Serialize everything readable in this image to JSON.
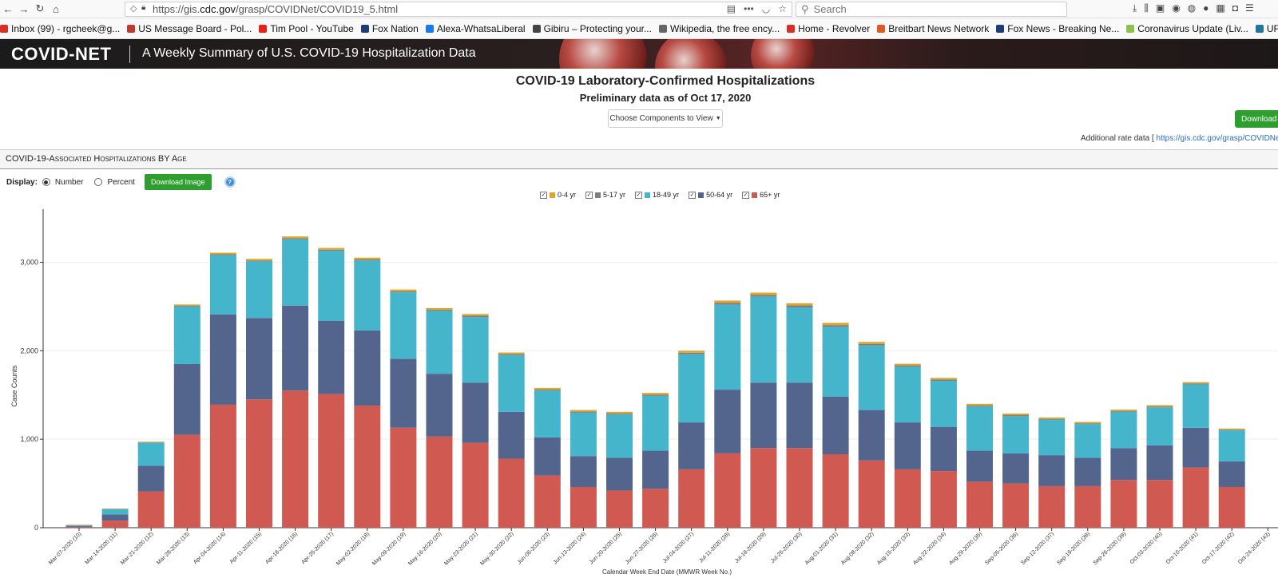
{
  "browser": {
    "url_prefix": "https://gis.",
    "url_domain": "cdc.gov",
    "url_path": "/grasp/COVIDNet/COVID19_5.html",
    "search_placeholder": "Search",
    "bookmarks": [
      {
        "label": "Inbox (99) - rgcheek@g...",
        "color": "#d93025"
      },
      {
        "label": "US Message Board - Pol...",
        "color": "#c0392b"
      },
      {
        "label": "Tim Pool - YouTube",
        "color": "#e62117"
      },
      {
        "label": "Fox Nation",
        "color": "#1d3c78"
      },
      {
        "label": "Alexa-WhatsaLiberal",
        "color": "#1877f2"
      },
      {
        "label": "Gibiru – Protecting your...",
        "color": "#444444"
      },
      {
        "label": "Wikipedia, the free ency...",
        "color": "#666666"
      },
      {
        "label": "Home - Revolver",
        "color": "#d93025"
      },
      {
        "label": "Breitbart News Network",
        "color": "#e25822"
      },
      {
        "label": "Fox News - Breaking Ne...",
        "color": "#1d3c78"
      },
      {
        "label": "Coronavirus Update (Liv...",
        "color": "#8bc34a"
      },
      {
        "label": "UFO Archives - Very To...",
        "color": "#21759b"
      }
    ]
  },
  "site": {
    "logo": "COVID-NET",
    "tagline": "A Weekly Summary of U.S. COVID-19 Hospitalization Data"
  },
  "page": {
    "title": "COVID-19 Laboratory-Confirmed Hospitalizations",
    "subtitle": "Preliminary data as of Oct 17, 2020",
    "components_button": "Choose Components to View",
    "download_data_button": "Download D",
    "rate_data_label": "Additional rate data [",
    "rate_data_link": "https://gis.cdc.gov/grasp/COVIDNet/CO"
  },
  "panel": {
    "title": "COVID-19-Associated Hospitalizations BY Age",
    "display_label": "Display:",
    "options": [
      "Number",
      "Percent"
    ],
    "selected_option": "Number",
    "download_image": "Download Image",
    "help": "?"
  },
  "chart_data": {
    "type": "bar",
    "stacked": true,
    "title": "",
    "xlabel": "Calendar Week End Date (MMWR Week No.)",
    "ylabel": "Case Counts",
    "ylim": [
      0,
      3600
    ],
    "yticks": [
      "0",
      "1,000",
      "2,000",
      "3,000"
    ],
    "ytick_values": [
      0,
      1000,
      2000,
      3000
    ],
    "grid": true,
    "legend_position": "top-center",
    "categories": [
      "Mar-07-2020 (10)",
      "Mar-14-2020 (11)",
      "Mar-21-2020 (12)",
      "Mar-28-2020 (13)",
      "Apr-04-2020 (14)",
      "Apr-11-2020 (15)",
      "Apr-18-2020 (16)",
      "Apr-25-2020 (17)",
      "May-02-2020 (18)",
      "May-09-2020 (19)",
      "May-16-2020 (20)",
      "May-23-2020 (21)",
      "May-30-2020 (22)",
      "Jun-06-2020 (23)",
      "Jun-13-2020 (24)",
      "Jun-20-2020 (25)",
      "Jun-27-2020 (26)",
      "Jul-04-2020 (27)",
      "Jul-11-2020 (28)",
      "Jul-18-2020 (29)",
      "Jul-25-2020 (30)",
      "Aug-01-2020 (31)",
      "Aug-08-2020 (32)",
      "Aug-15-2020 (33)",
      "Aug-22-2020 (34)",
      "Aug-29-2020 (35)",
      "Sep-05-2020 (36)",
      "Sep-12-2020 (37)",
      "Sep-19-2020 (38)",
      "Sep-26-2020 (39)",
      "Oct-03-2020 (40)",
      "Oct-10-2020 (41)",
      "Oct-17-2020 (42)",
      "Oct-24-2020 (43)"
    ],
    "series": [
      {
        "name": "0-4 yr",
        "color": "#e0a526",
        "values": [
          2,
          3,
          8,
          15,
          18,
          18,
          20,
          20,
          20,
          20,
          20,
          20,
          18,
          18,
          18,
          18,
          18,
          22,
          25,
          25,
          25,
          25,
          22,
          18,
          18,
          18,
          18,
          15,
          15,
          15,
          15,
          15,
          12,
          0
        ]
      },
      {
        "name": "5-17 yr",
        "color": "#7b7e84",
        "values": [
          1,
          2,
          4,
          8,
          10,
          10,
          12,
          12,
          12,
          12,
          12,
          15,
          12,
          12,
          12,
          12,
          15,
          18,
          22,
          22,
          22,
          20,
          18,
          15,
          15,
          12,
          12,
          10,
          10,
          10,
          10,
          10,
          8,
          0
        ]
      },
      {
        "name": "18-49 yr",
        "color": "#45b5cc",
        "values": [
          10,
          60,
          260,
          650,
          670,
          640,
          750,
          790,
          790,
          750,
          710,
          740,
          640,
          530,
          490,
          490,
          620,
          770,
          960,
          970,
          850,
          790,
          730,
          630,
          520,
          500,
          420,
          400,
          380,
          410,
          430,
          490,
          350,
          0
        ]
      },
      {
        "name": "50-64 yr",
        "color": "#53658c",
        "values": [
          10,
          70,
          290,
          800,
          1020,
          920,
          960,
          830,
          850,
          780,
          710,
          680,
          530,
          430,
          350,
          370,
          430,
          530,
          720,
          740,
          740,
          650,
          570,
          530,
          500,
          350,
          340,
          350,
          320,
          360,
          390,
          450,
          290,
          0
        ]
      },
      {
        "name": "65+ yr",
        "color": "#d05a52",
        "values": [
          10,
          80,
          410,
          1050,
          1390,
          1450,
          1550,
          1510,
          1380,
          1130,
          1030,
          960,
          780,
          590,
          460,
          420,
          440,
          660,
          840,
          900,
          900,
          830,
          760,
          660,
          640,
          520,
          500,
          470,
          470,
          540,
          540,
          680,
          460,
          0
        ]
      }
    ]
  }
}
